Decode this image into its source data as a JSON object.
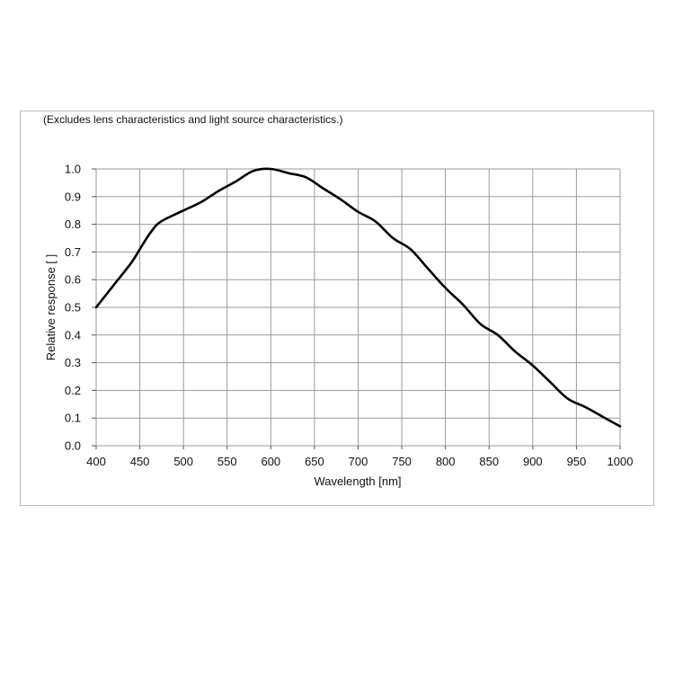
{
  "note": "(Excludes lens characteristics and light source characteristics.)",
  "chart_data": {
    "type": "line",
    "title": "",
    "xlabel": "Wavelength [nm]",
    "ylabel": "Relative response [ ]",
    "xlim": [
      400,
      1000
    ],
    "ylim": [
      0.0,
      1.0
    ],
    "x_ticks": [
      400,
      450,
      500,
      550,
      600,
      650,
      700,
      750,
      800,
      850,
      900,
      950,
      1000
    ],
    "y_ticks": [
      0.0,
      0.1,
      0.2,
      0.3,
      0.4,
      0.5,
      0.6,
      0.7,
      0.8,
      0.9,
      1.0
    ],
    "x_tick_labels": [
      "400",
      "450",
      "500",
      "550",
      "600",
      "650",
      "700",
      "750",
      "800",
      "850",
      "900",
      "950",
      "1000"
    ],
    "y_tick_labels": [
      "0.0",
      "0.1",
      "0.2",
      "0.3",
      "0.4",
      "0.5",
      "0.6",
      "0.7",
      "0.8",
      "0.9",
      "1.0"
    ],
    "grid": true,
    "line_color": "#000000",
    "grid_color": "#9a9a9a",
    "series": [
      {
        "x": [
          400,
          420,
          440,
          450,
          460,
          470,
          480,
          500,
          520,
          540,
          560,
          580,
          600,
          620,
          640,
          660,
          680,
          700,
          720,
          740,
          760,
          780,
          800,
          820,
          840,
          860,
          880,
          900,
          920,
          940,
          960,
          980,
          1000
        ],
        "values": [
          0.5,
          0.58,
          0.66,
          0.71,
          0.76,
          0.8,
          0.82,
          0.85,
          0.88,
          0.92,
          0.955,
          0.993,
          1.0,
          0.985,
          0.97,
          0.93,
          0.89,
          0.845,
          0.81,
          0.75,
          0.71,
          0.64,
          0.57,
          0.51,
          0.44,
          0.4,
          0.34,
          0.29,
          0.23,
          0.17,
          0.14,
          0.105,
          0.07
        ]
      }
    ]
  }
}
